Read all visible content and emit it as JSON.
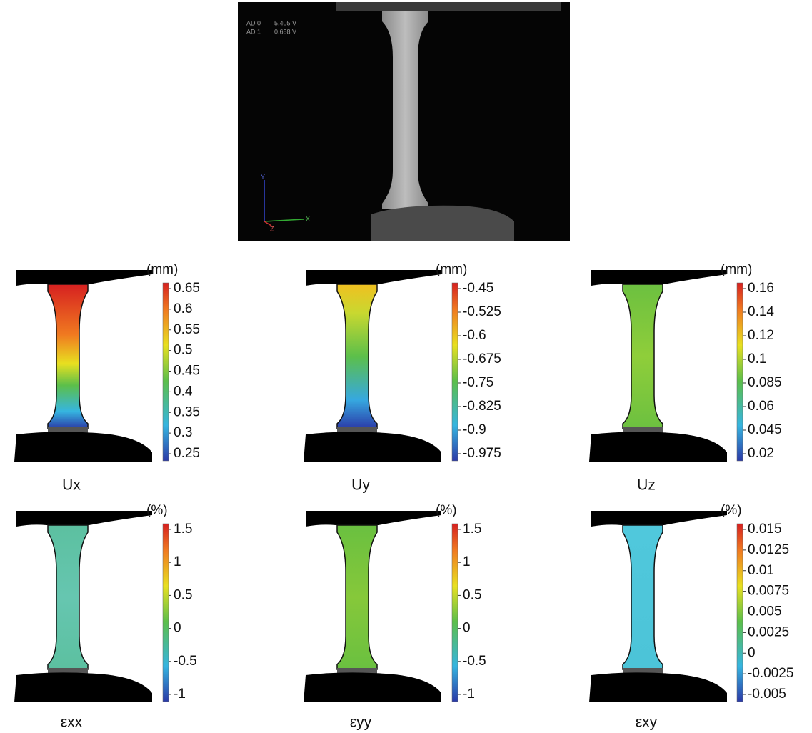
{
  "photo": {
    "readouts": [
      {
        "channel": "AD 0",
        "value": "5.405 V"
      },
      {
        "channel": "AD 1",
        "value": "0.688 V"
      }
    ],
    "axes": {
      "y": "Y",
      "x": "X",
      "z": "Z"
    }
  },
  "panels": [
    {
      "caption": "Ux",
      "unit": "(mm)",
      "ticks": [
        0.65,
        0.6,
        0.55,
        0.5,
        0.45,
        0.4,
        0.35,
        0.3,
        0.25
      ]
    },
    {
      "caption": "Uy",
      "unit": "(mm)",
      "ticks": [
        -0.45,
        -0.525,
        -0.6,
        -0.675,
        -0.75,
        -0.825,
        -0.9,
        -0.975
      ]
    },
    {
      "caption": "Uz",
      "unit": "(mm)",
      "ticks": [
        0.16,
        0.14,
        0.12,
        0.1,
        0.085,
        0.06,
        0.045,
        0.02
      ]
    },
    {
      "caption": "εxx",
      "unit": "(%)",
      "ticks": [
        1.5,
        1,
        0.5,
        0,
        -0.5,
        -1
      ]
    },
    {
      "caption": "εyy",
      "unit": "(%)",
      "ticks": [
        1.5,
        1,
        0.5,
        0,
        -0.5,
        -1
      ]
    },
    {
      "caption": "εxy",
      "unit": "(%)",
      "ticks": [
        0.015,
        0.0125,
        0.01,
        0.0075,
        0.005,
        0.0025,
        0,
        -0.0025,
        -0.005
      ]
    }
  ]
}
